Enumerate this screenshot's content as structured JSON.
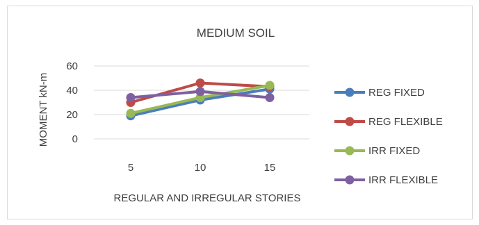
{
  "chart_data": {
    "type": "line",
    "title": "MEDIUM SOIL",
    "xlabel": "REGULAR AND IRREGULAR STORIES",
    "ylabel": "MOMENT kN-m",
    "categories": [
      "5",
      "10",
      "15"
    ],
    "ylim": [
      0,
      60
    ],
    "yticks": [
      0,
      20,
      40,
      60
    ],
    "grid": "horizontal",
    "legend_position": "right",
    "series": [
      {
        "name": "REG FIXED",
        "color": "#4a7ebb",
        "values": [
          19,
          32,
          41
        ]
      },
      {
        "name": "REG FLEXIBLE",
        "color": "#be4b48",
        "values": [
          30,
          46,
          43
        ]
      },
      {
        "name": "IRR FIXED",
        "color": "#98b954",
        "values": [
          21,
          34,
          44
        ]
      },
      {
        "name": "IRR FLEXIBLE",
        "color": "#7d60a0",
        "values": [
          34,
          39,
          34
        ]
      }
    ]
  }
}
